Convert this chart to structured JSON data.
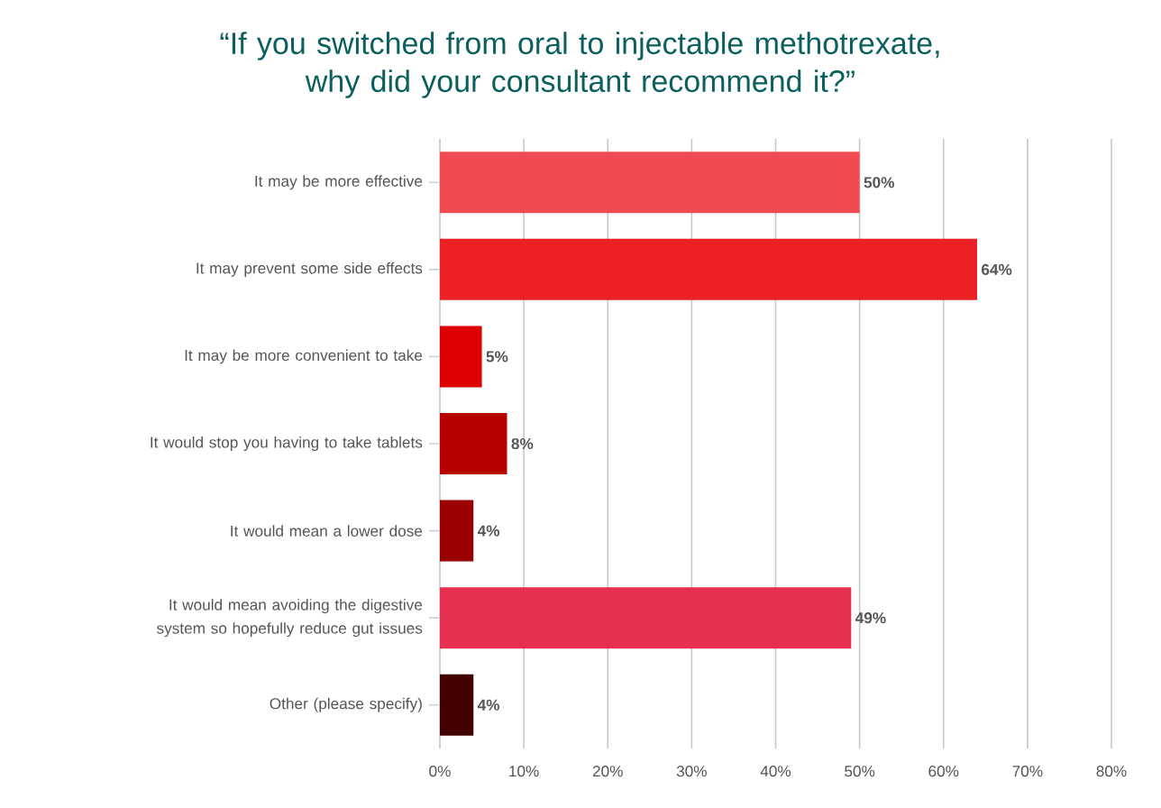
{
  "chart_data": {
    "type": "bar",
    "orientation": "horizontal",
    "title": "“If you switched from oral to injectable methotrexate, why did your consultant recommend it?”",
    "categories": [
      "It may be more effective",
      "It may prevent some side effects",
      "It may be more convenient to take",
      "It would stop you having to take tablets",
      "It would mean a lower dose",
      "It would mean avoiding the digestive system so hopefully reduce gut issues",
      "Other (please specify)"
    ],
    "values": [
      50,
      64,
      5,
      8,
      4,
      49,
      4
    ],
    "colors": [
      "#f04b51",
      "#ec2125",
      "#dd0000",
      "#b80000",
      "#9a0000",
      "#e5304f",
      "#420000"
    ],
    "value_labels": [
      "50%",
      "64%",
      "5%",
      "8%",
      "4%",
      "49%",
      "4%"
    ],
    "xlim": [
      0,
      80
    ],
    "xticks": [
      {
        "value": 0,
        "label": "0%"
      },
      {
        "value": 10,
        "label": "10%"
      },
      {
        "value": 20,
        "label": "20%"
      },
      {
        "value": 30,
        "label": "30%"
      },
      {
        "value": 40,
        "label": "40%"
      },
      {
        "value": 50,
        "label": "50%"
      },
      {
        "value": 60,
        "label": "60%"
      },
      {
        "value": 70,
        "label": "70%"
      },
      {
        "value": 80,
        "label": "80%"
      }
    ],
    "grid": "x"
  }
}
